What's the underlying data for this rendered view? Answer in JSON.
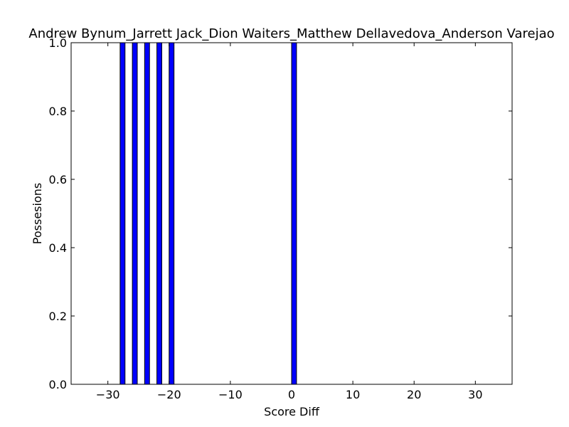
{
  "chart_data": {
    "type": "bar",
    "title": "Andrew Bynum_Jarrett Jack_Dion Waiters_Matthew Dellavedova_Anderson Varejao",
    "xlabel": "Score Diff",
    "ylabel": "Possesions",
    "xlim": [
      -36,
      36
    ],
    "ylim": [
      0,
      1
    ],
    "x_ticks": [
      -30,
      -20,
      -10,
      0,
      10,
      20,
      30
    ],
    "x_tick_labels": [
      "−30",
      "−20",
      "−10",
      "0",
      "10",
      "20",
      "30"
    ],
    "y_ticks": [
      0,
      0.2,
      0.4,
      0.6,
      0.8,
      1.0
    ],
    "y_tick_labels": [
      "0.0",
      "0.2",
      "0.4",
      "0.6",
      "0.8",
      "1.0"
    ],
    "bar_width": 0.8,
    "bars": [
      {
        "x": -28,
        "value": 1
      },
      {
        "x": -26,
        "value": 1
      },
      {
        "x": -24,
        "value": 1
      },
      {
        "x": -22,
        "value": 1
      },
      {
        "x": -20,
        "value": 1
      },
      {
        "x": 0,
        "value": 1
      }
    ],
    "bar_color": "#0000ff",
    "grid": false,
    "legend": "none"
  }
}
